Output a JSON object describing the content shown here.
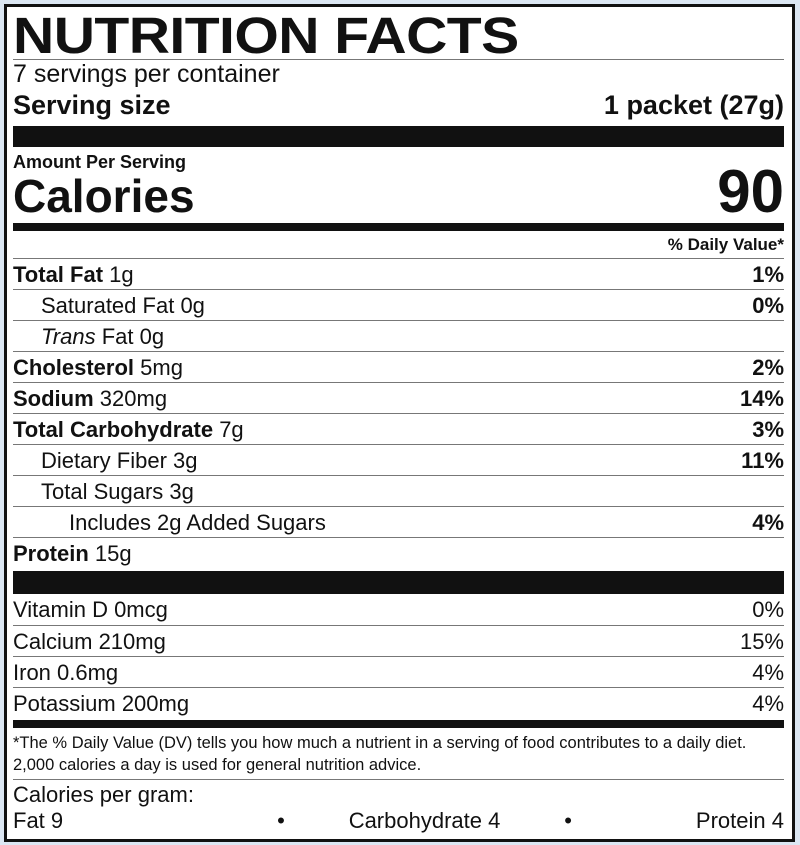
{
  "title": "NUTRITION FACTS",
  "servings_per_container": "7 servings per container",
  "serving_size": {
    "label": "Serving size",
    "value": "1 packet (27g)"
  },
  "amount_per_serving": "Amount Per Serving",
  "calories": {
    "label": "Calories",
    "value": "90"
  },
  "dv_header": "% Daily Value*",
  "nutrients": [
    {
      "name": "Total Fat",
      "amount": "1g",
      "dv": "1%",
      "bold": true,
      "indent": 0
    },
    {
      "name": "Saturated Fat",
      "amount": "0g",
      "dv": "0%",
      "bold": false,
      "indent": 1
    },
    {
      "name": "Trans",
      "name_suffix": "Fat",
      "amount": "0g",
      "dv": "",
      "bold": false,
      "indent": 1
    },
    {
      "name": "Cholesterol",
      "amount": "5mg",
      "dv": "2%",
      "bold": true,
      "indent": 0
    },
    {
      "name": "Sodium",
      "amount": "320mg",
      "dv": "14%",
      "bold": true,
      "indent": 0
    },
    {
      "name": "Total Carbohydrate",
      "amount": "7g",
      "dv": "3%",
      "bold": true,
      "indent": 0
    },
    {
      "name": "Dietary Fiber",
      "amount": "3g",
      "dv": "11%",
      "bold": false,
      "indent": 1
    },
    {
      "name": "Total Sugars",
      "amount": "3g",
      "dv": "",
      "bold": false,
      "indent": 1
    },
    {
      "name": "Includes 2g Added Sugars",
      "amount": "",
      "dv": "4%",
      "bold": false,
      "indent": 2
    },
    {
      "name": "Protein",
      "amount": "15g",
      "dv": "",
      "bold": true,
      "indent": 0
    }
  ],
  "vitamins": [
    {
      "name": "Vitamin D 0mcg",
      "dv": "0%"
    },
    {
      "name": "Calcium 210mg",
      "dv": "15%"
    },
    {
      "name": "Iron 0.6mg",
      "dv": "4%"
    },
    {
      "name": "Potassium 200mg",
      "dv": "4%"
    }
  ],
  "footnote": "*The % Daily Value (DV) tells you how much a nutrient in a serving of food contributes to a daily diet. 2,000 calories a day is used for general nutrition advice.",
  "calories_per_gram": {
    "label": "Calories per gram:",
    "fat": "Fat 9",
    "carbohydrate": "Carbohydrate 4",
    "protein": "Protein 4",
    "separator": "•"
  },
  "colors": {
    "background": "#dce7f3",
    "ink": "#111111"
  }
}
